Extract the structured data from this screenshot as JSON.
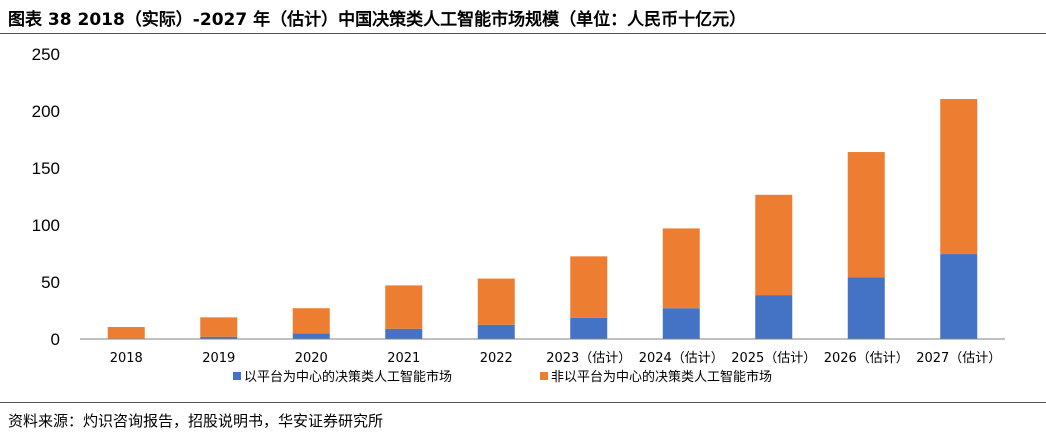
{
  "title": "图表 38 2018（实际）-2027 年（估计）中国决策类人工智能市场规模（单位：人民币十亿元）",
  "source": "资料来源：灼识咨询报告，招股说明书，华安证券研究所",
  "colors": {
    "series_platform": "#4472C4",
    "series_non_platform": "#ED7D31",
    "axis": "#808080"
  },
  "chart_data": {
    "type": "bar",
    "stacked": true,
    "title": "",
    "xlabel": "",
    "ylabel": "",
    "ylim": [
      0,
      250
    ],
    "yticks": [
      "0",
      "50",
      "100",
      "150",
      "200",
      "250"
    ],
    "grid": false,
    "legend_position": "bottom",
    "categories": [
      "2018",
      "2019",
      "2020",
      "2021",
      "2022",
      "2023（估计）",
      "2024（估计）",
      "2025（估计）",
      "2026（估计）",
      "2027（估计）"
    ],
    "series": [
      {
        "name": "以平台为中心的决策类人工智能市场",
        "values": [
          0.5,
          2,
          5,
          9,
          12.5,
          18.5,
          27,
          38.5,
          54,
          74.5
        ]
      },
      {
        "name": "非以平台为中心的决策类人工智能市场",
        "values": [
          10,
          17,
          22,
          38,
          40.5,
          54,
          70,
          88,
          110,
          136
        ]
      }
    ]
  }
}
